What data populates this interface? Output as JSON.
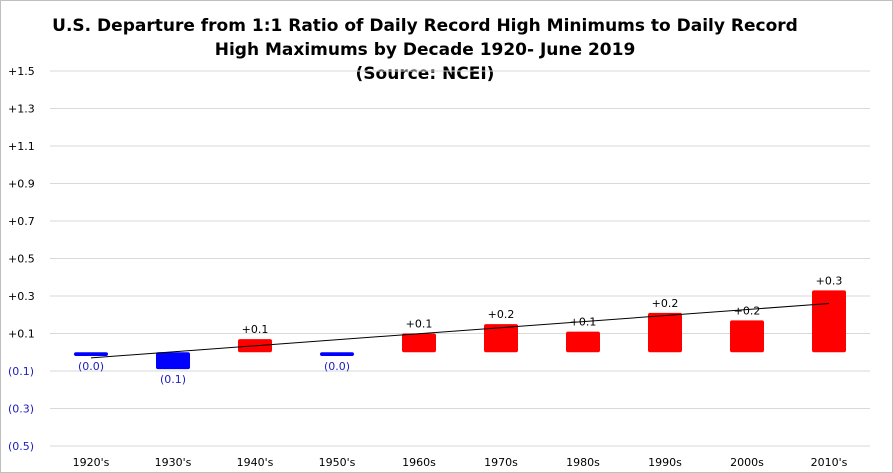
{
  "chart_data": {
    "type": "bar",
    "title_lines": [
      "U.S. Departure from 1:1 Ratio of Daily Record High Minimums to Daily Record",
      "High Maximums by Decade 1920- June 2019",
      "(Source: NCEI)"
    ],
    "categories": [
      "1920's",
      "1930's",
      "1940's",
      "1950's",
      "1960s",
      "1970s",
      "1980s",
      "1990s",
      "2000s",
      "2010's"
    ],
    "values": [
      -0.02,
      -0.09,
      0.07,
      -0.02,
      0.1,
      0.15,
      0.11,
      0.21,
      0.17,
      0.33
    ],
    "data_labels": [
      "(0.0)",
      "(0.1)",
      "+0.1",
      "(0.0)",
      "+0.1",
      "+0.2",
      "+0.1",
      "+0.2",
      "+0.2",
      "+0.3"
    ],
    "y_tick_labels": [
      "+1.5",
      "+1.3",
      "+1.1",
      "+0.9",
      "+0.7",
      "+0.5",
      "+0.3",
      "+0.1",
      "(0.1)",
      "(0.3)",
      "(0.5)"
    ],
    "ylim": [
      -0.5,
      1.5
    ],
    "trendline": {
      "start": -0.03,
      "end": 0.26
    },
    "grid": true,
    "legend": "none",
    "colors": {
      "positive": "#ff0000",
      "negative": "#0000ff",
      "positive_label": "#000000",
      "negative_label": "#2020c0",
      "grid": "#d9d9d9",
      "trend": "#000000"
    }
  }
}
